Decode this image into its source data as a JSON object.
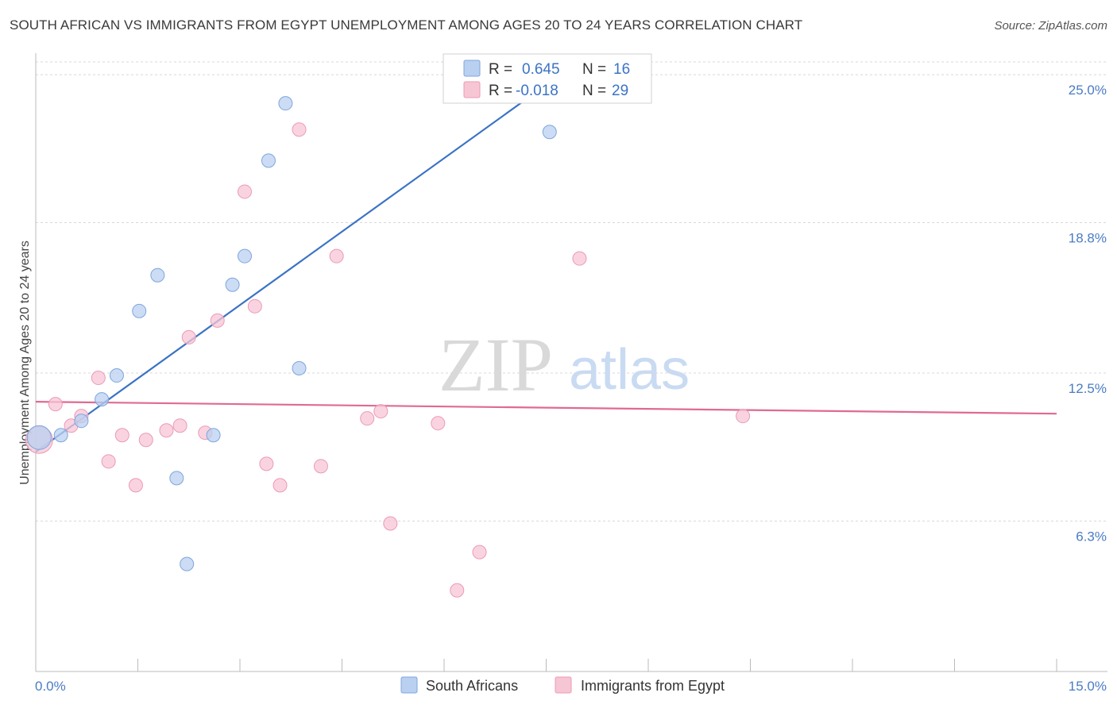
{
  "header": {
    "title": "SOUTH AFRICAN VS IMMIGRANTS FROM EGYPT UNEMPLOYMENT AMONG AGES 20 TO 24 YEARS CORRELATION CHART",
    "source": "Source: ZipAtlas.com"
  },
  "watermark": {
    "zip": "ZIP",
    "atlas": "atlas"
  },
  "colors": {
    "blue": "#3b73c5",
    "blue_fill": "#b9d0f0",
    "blue_stroke": "#7fa6dc",
    "pink": "#e06a92",
    "pink_fill": "#f7c6d5",
    "pink_stroke": "#ec9ab5",
    "axis_label": "#4a7cc4",
    "grid": "#d8d8d8"
  },
  "legend": {
    "rows": [
      {
        "r_label": "R =",
        "r_value": "0.645",
        "n_label": "N =",
        "n_value": "16"
      },
      {
        "r_label": "R =",
        "r_value": "-0.018",
        "n_label": "N =",
        "n_value": "29"
      }
    ]
  },
  "bottom_legend": {
    "items": [
      {
        "label": "South Africans"
      },
      {
        "label": "Immigrants from Egypt"
      }
    ]
  },
  "chart_data": {
    "type": "scatter",
    "title": "SOUTH AFRICAN VS IMMIGRANTS FROM EGYPT UNEMPLOYMENT AMONG AGES 20 TO 24 YEARS CORRELATION CHART",
    "xlabel": "",
    "ylabel": "Unemployment Among Ages 20 to 24 years",
    "xlim": [
      0,
      15
    ],
    "ylim": [
      0,
      25.9
    ],
    "x_tick_labels": [
      "0.0%",
      "15.0%"
    ],
    "y_ticks": [
      6.3,
      12.5,
      18.8,
      25.0
    ],
    "y_tick_labels": [
      "6.3%",
      "12.5%",
      "18.8%",
      "25.0%"
    ],
    "series": [
      {
        "name": "South Africans",
        "points": [
          [
            0.05,
            9.8
          ],
          [
            0.37,
            9.9
          ],
          [
            0.67,
            10.5
          ],
          [
            0.97,
            11.4
          ],
          [
            1.19,
            12.4
          ],
          [
            1.52,
            15.1
          ],
          [
            1.79,
            16.6
          ],
          [
            2.07,
            8.1
          ],
          [
            2.22,
            4.5
          ],
          [
            2.61,
            9.9
          ],
          [
            2.89,
            16.2
          ],
          [
            3.07,
            17.4
          ],
          [
            3.42,
            21.4
          ],
          [
            3.67,
            23.8
          ],
          [
            3.87,
            12.7
          ],
          [
            7.55,
            22.6
          ]
        ],
        "trend": {
          "x": [
            0.0,
            8.0
          ],
          "y": [
            9.2,
            25.6
          ]
        }
      },
      {
        "name": "Immigrants from Egypt",
        "points": [
          [
            0.05,
            9.7
          ],
          [
            0.29,
            11.2
          ],
          [
            0.52,
            10.3
          ],
          [
            0.67,
            10.7
          ],
          [
            0.92,
            12.3
          ],
          [
            1.07,
            8.8
          ],
          [
            1.47,
            7.8
          ],
          [
            1.27,
            9.9
          ],
          [
            1.62,
            9.7
          ],
          [
            1.92,
            10.1
          ],
          [
            2.12,
            10.3
          ],
          [
            2.25,
            14.0
          ],
          [
            2.49,
            10.0
          ],
          [
            2.67,
            14.7
          ],
          [
            3.07,
            20.1
          ],
          [
            3.22,
            15.3
          ],
          [
            3.39,
            8.7
          ],
          [
            3.59,
            7.8
          ],
          [
            3.87,
            22.7
          ],
          [
            4.19,
            8.6
          ],
          [
            4.42,
            17.4
          ],
          [
            4.87,
            10.6
          ],
          [
            5.07,
            10.9
          ],
          [
            5.21,
            6.2
          ],
          [
            5.91,
            10.4
          ],
          [
            6.19,
            3.4
          ],
          [
            6.52,
            5.0
          ],
          [
            7.99,
            17.3
          ],
          [
            10.39,
            10.7
          ]
        ],
        "trend": {
          "x": [
            0.0,
            15.0
          ],
          "y": [
            11.3,
            10.8
          ]
        }
      }
    ]
  }
}
